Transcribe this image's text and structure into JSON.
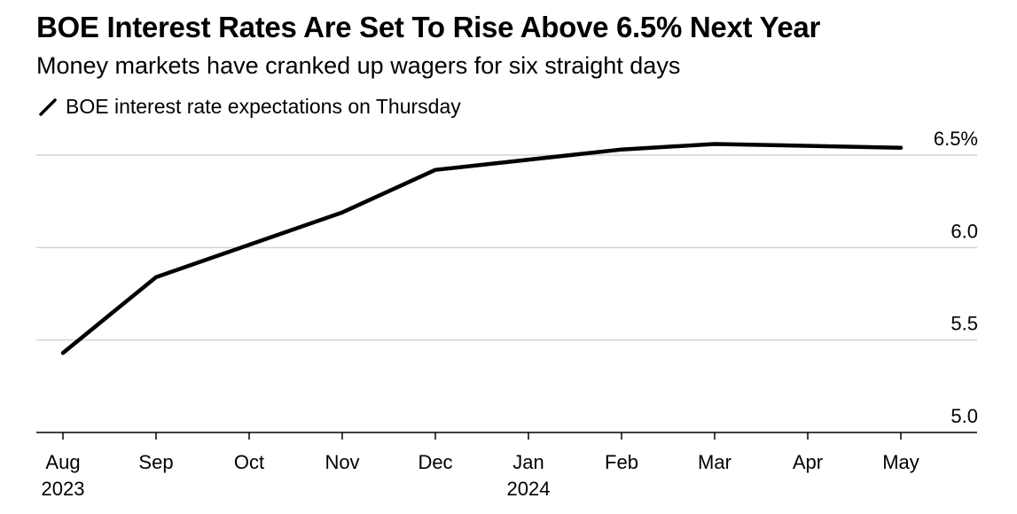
{
  "chart_data": {
    "type": "line",
    "title": "BOE Interest Rates Are Set To Rise Above 6.5% Next Year",
    "subtitle": "Money markets have cranked up wagers for six straight days",
    "legend_position": "top-left",
    "series": [
      {
        "name": "BOE interest rate expectations on Thursday",
        "color": "#000000",
        "x": [
          "2023-08",
          "2023-09",
          "2023-11",
          "2023-12",
          "2024-02",
          "2024-03",
          "2024-05"
        ],
        "values": [
          5.43,
          5.84,
          6.19,
          6.42,
          6.53,
          6.56,
          6.54
        ]
      }
    ],
    "x_ticks": [
      "Aug",
      "Sep",
      "Oct",
      "Nov",
      "Dec",
      "Jan",
      "Feb",
      "Mar",
      "Apr",
      "May"
    ],
    "x_tick_dates": [
      "2023-08",
      "2023-09",
      "2023-10",
      "2023-11",
      "2023-12",
      "2024-01",
      "2024-02",
      "2024-03",
      "2024-04",
      "2024-05"
    ],
    "x_year_labels": [
      {
        "date": "2023-08",
        "label": "2023"
      },
      {
        "date": "2024-01",
        "label": "2024"
      }
    ],
    "y_ticks": [
      {
        "value": 5.0,
        "label": "5.0"
      },
      {
        "value": 5.5,
        "label": "5.5"
      },
      {
        "value": 6.0,
        "label": "6.0"
      },
      {
        "value": 6.5,
        "label": "6.5%"
      }
    ],
    "ylim": [
      5.0,
      6.5
    ],
    "y_axis_side": "right",
    "grid": true,
    "grid_color": "#d4d4d4",
    "xlabel": "",
    "ylabel": ""
  }
}
